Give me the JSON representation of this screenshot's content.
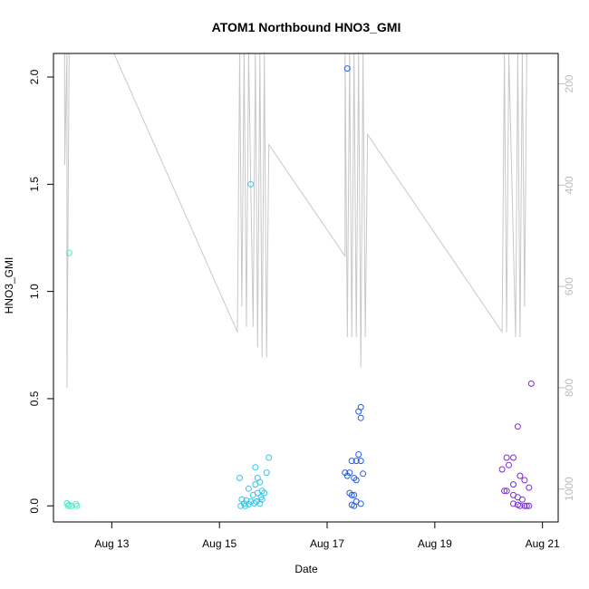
{
  "chart_data": {
    "type": "scatter",
    "title": "ATOM1 Northbound HNO3_GMI",
    "xlabel": "Date",
    "ylabel": "HNO3_GMI",
    "xlim": [
      "2016-08-11T22:00",
      "2016-08-21T07:00"
    ],
    "ylim": [
      -0.075,
      2.11
    ],
    "y2lim": [
      1065,
      140
    ],
    "y2reversed": true,
    "x_ticks": [
      {
        "date": "2016-08-13",
        "label": "Aug 13"
      },
      {
        "date": "2016-08-15",
        "label": "Aug 15"
      },
      {
        "date": "2016-08-17",
        "label": "Aug 17"
      },
      {
        "date": "2016-08-19",
        "label": "Aug 19"
      },
      {
        "date": "2016-08-21",
        "label": "Aug 21"
      }
    ],
    "y_ticks": [
      0.0,
      0.5,
      1.0,
      1.5,
      2.0
    ],
    "y_tick_labels": [
      "0.0",
      "0.5",
      "1.0",
      "1.5",
      "2.0"
    ],
    "y2_ticks": [
      200,
      400,
      600,
      800,
      1000
    ],
    "y2_tick_labels": [
      "200",
      "400",
      "600",
      "800",
      "1000"
    ],
    "grid": false,
    "legend": "none",
    "points_series": [
      {
        "color": "#3ef0c8",
        "points": [
          [
            "2016-08-12T05:00",
            1.18
          ],
          [
            "2016-08-12T04:00",
            0.012
          ],
          [
            "2016-08-12T05:00",
            0.004
          ],
          [
            "2016-08-12T06:00",
            0.0
          ],
          [
            "2016-08-12T08:00",
            0.008
          ],
          [
            "2016-08-12T08:30",
            0.0
          ],
          [
            "2016-08-12T04:30",
            0.0
          ]
        ]
      },
      {
        "color": "#2ec8ee",
        "points": [
          [
            "2016-08-15T14:00",
            1.5
          ],
          [
            "2016-08-15T09:00",
            0.13
          ],
          [
            "2016-08-15T13:00",
            0.08
          ],
          [
            "2016-08-15T16:00",
            0.18
          ],
          [
            "2016-08-15T17:00",
            0.13
          ],
          [
            "2016-08-15T16:00",
            0.1
          ],
          [
            "2016-08-15T18:00",
            0.11
          ],
          [
            "2016-08-15T21:00",
            0.155
          ],
          [
            "2016-08-15T22:00",
            0.225
          ],
          [
            "2016-08-15T19:00",
            0.07
          ],
          [
            "2016-08-15T17:00",
            0.06
          ],
          [
            "2016-08-15T15:00",
            0.05
          ],
          [
            "2016-08-15T20:00",
            0.06
          ],
          [
            "2016-08-15T18:30",
            0.04
          ],
          [
            "2016-08-15T10:00",
            0.03
          ],
          [
            "2016-08-15T12:00",
            0.025
          ],
          [
            "2016-08-15T14:00",
            0.02
          ],
          [
            "2016-08-15T16:30",
            0.02
          ],
          [
            "2016-08-15T11:00",
            0.01
          ],
          [
            "2016-08-15T13:00",
            0.008
          ],
          [
            "2016-08-15T15:30",
            0.012
          ],
          [
            "2016-08-15T18:00",
            0.01
          ],
          [
            "2016-08-15T09:30",
            0.0
          ],
          [
            "2016-08-15T11:30",
            0.0
          ],
          [
            "2016-08-15T19:00",
            0.03
          ]
        ]
      },
      {
        "color": "#2a5de2",
        "points": [
          [
            "2016-08-17T09:00",
            2.04
          ],
          [
            "2016-08-17T14:00",
            0.44
          ],
          [
            "2016-08-17T15:00",
            0.46
          ],
          [
            "2016-08-17T15:00",
            0.41
          ],
          [
            "2016-08-17T08:00",
            0.155
          ],
          [
            "2016-08-17T10:00",
            0.155
          ],
          [
            "2016-08-17T11:00",
            0.21
          ],
          [
            "2016-08-17T13:00",
            0.21
          ],
          [
            "2016-08-17T14:00",
            0.24
          ],
          [
            "2016-08-17T15:00",
            0.21
          ],
          [
            "2016-08-17T09:00",
            0.14
          ],
          [
            "2016-08-17T12:00",
            0.13
          ],
          [
            "2016-08-17T13:00",
            0.12
          ],
          [
            "2016-08-17T16:00",
            0.15
          ],
          [
            "2016-08-17T10:00",
            0.06
          ],
          [
            "2016-08-17T11:00",
            0.05
          ],
          [
            "2016-08-17T12:00",
            0.05
          ],
          [
            "2016-08-17T13:00",
            0.02
          ],
          [
            "2016-08-17T15:00",
            0.01
          ],
          [
            "2016-08-17T11:00",
            0.005
          ],
          [
            "2016-08-17T12:00",
            0.0
          ]
        ]
      },
      {
        "color": "#7a2ad8",
        "points": [
          [
            "2016-08-20T19:00",
            0.57
          ],
          [
            "2016-08-20T13:00",
            0.37
          ],
          [
            "2016-08-20T08:00",
            0.225
          ],
          [
            "2016-08-20T11:00",
            0.225
          ],
          [
            "2016-08-20T09:00",
            0.19
          ],
          [
            "2016-08-20T06:00",
            0.17
          ],
          [
            "2016-08-20T14:00",
            0.14
          ],
          [
            "2016-08-20T16:00",
            0.12
          ],
          [
            "2016-08-20T11:00",
            0.1
          ],
          [
            "2016-08-20T18:00",
            0.085
          ],
          [
            "2016-08-20T07:00",
            0.07
          ],
          [
            "2016-08-20T08:00",
            0.07
          ],
          [
            "2016-08-20T11:00",
            0.05
          ],
          [
            "2016-08-20T13:00",
            0.04
          ],
          [
            "2016-08-20T15:00",
            0.03
          ],
          [
            "2016-08-20T11:00",
            0.01
          ],
          [
            "2016-08-20T13:00",
            0.005
          ],
          [
            "2016-08-20T14:00",
            0.0
          ],
          [
            "2016-08-20T16:00",
            0.0
          ],
          [
            "2016-08-20T18:00",
            0.0
          ],
          [
            "2016-08-20T17:00",
            0.0
          ]
        ]
      }
    ],
    "line_series": {
      "color": "#c8c8c8",
      "axis": "y2",
      "points": [
        [
          "2016-08-12T03:00",
          140
        ],
        [
          "2016-08-12T03:00",
          360
        ],
        [
          "2016-08-12T04:00",
          140
        ],
        [
          "2016-08-12T04:00",
          800
        ],
        [
          "2016-08-12T05:00",
          140
        ],
        [
          "2016-08-12T06:00",
          140
        ],
        [
          "2016-08-13T01:00",
          140
        ],
        [
          "2016-08-15T08:00",
          690
        ],
        [
          "2016-08-15T09:00",
          140
        ],
        [
          "2016-08-15T10:00",
          640
        ],
        [
          "2016-08-15T11:00",
          140
        ],
        [
          "2016-08-15T12:00",
          680
        ],
        [
          "2016-08-15T13:00",
          140
        ],
        [
          "2016-08-15T15:00",
          680
        ],
        [
          "2016-08-15T16:00",
          140
        ],
        [
          "2016-08-15T17:00",
          720
        ],
        [
          "2016-08-15T18:00",
          140
        ],
        [
          "2016-08-15T19:00",
          740
        ],
        [
          "2016-08-15T20:00",
          140
        ],
        [
          "2016-08-15T21:00",
          740
        ],
        [
          "2016-08-15T22:00",
          320
        ],
        [
          "2016-08-17T08:00",
          540
        ],
        [
          "2016-08-17T08:00",
          140
        ],
        [
          "2016-08-17T09:00",
          700
        ],
        [
          "2016-08-17T10:00",
          140
        ],
        [
          "2016-08-17T11:00",
          700
        ],
        [
          "2016-08-17T12:00",
          140
        ],
        [
          "2016-08-17T13:00",
          700
        ],
        [
          "2016-08-17T14:00",
          140
        ],
        [
          "2016-08-17T15:00",
          760
        ],
        [
          "2016-08-17T16:00",
          140
        ],
        [
          "2016-08-17T17:00",
          700
        ],
        [
          "2016-08-17T18:00",
          300
        ],
        [
          "2016-08-20T06:00",
          690
        ],
        [
          "2016-08-20T07:00",
          140
        ],
        [
          "2016-08-20T08:00",
          690
        ],
        [
          "2016-08-20T09:00",
          140
        ],
        [
          "2016-08-20T12:00",
          700
        ],
        [
          "2016-08-20T13:00",
          140
        ],
        [
          "2016-08-20T14:00",
          700
        ],
        [
          "2016-08-20T15:00",
          140
        ],
        [
          "2016-08-20T16:00",
          640
        ],
        [
          "2016-08-20T17:00",
          140
        ],
        [
          "2016-08-20T18:00",
          140
        ]
      ]
    }
  }
}
